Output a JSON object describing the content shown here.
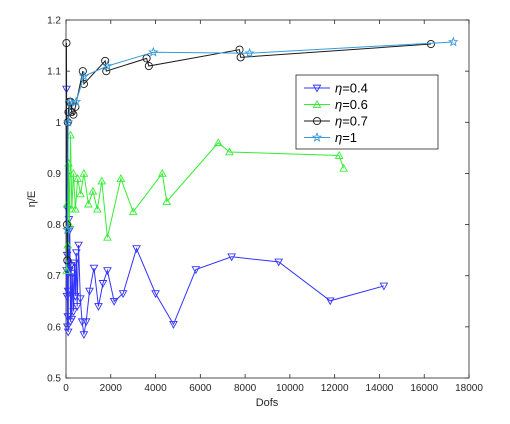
{
  "chart_data": {
    "type": "line",
    "xlabel": "Dofs",
    "ylabel": "η/E",
    "xlim": [
      0,
      18000
    ],
    "ylim": [
      0.5,
      1.2
    ],
    "xticks": [
      0,
      2000,
      4000,
      6000,
      8000,
      10000,
      12000,
      14000,
      16000,
      18000
    ],
    "yticks": [
      0.5,
      0.6,
      0.7,
      0.8,
      0.9,
      1,
      1.1,
      1.2
    ],
    "grid": false,
    "legend_position": "top-right",
    "series": [
      {
        "name": "η=0.4",
        "legend_prefix": "η",
        "legend_value": "=0.4",
        "color": "#3333ff",
        "marker": "triangle-down",
        "points": [
          [
            20,
            1.065
          ],
          [
            30,
            0.71
          ],
          [
            40,
            0.66
          ],
          [
            50,
            0.74
          ],
          [
            60,
            0.6
          ],
          [
            70,
            0.83
          ],
          [
            80,
            0.62
          ],
          [
            90,
            0.67
          ],
          [
            100,
            0.59
          ],
          [
            110,
            0.72
          ],
          [
            130,
            0.81
          ],
          [
            150,
            0.71
          ],
          [
            170,
            0.79
          ],
          [
            200,
            0.61
          ],
          [
            230,
            0.72
          ],
          [
            260,
            0.615
          ],
          [
            300,
            0.705
          ],
          [
            340,
            0.63
          ],
          [
            380,
            0.725
          ],
          [
            420,
            0.66
          ],
          [
            460,
            0.745
          ],
          [
            500,
            0.64
          ],
          [
            560,
            0.76
          ],
          [
            640,
            0.655
          ],
          [
            720,
            0.61
          ],
          [
            800,
            0.585
          ],
          [
            900,
            0.61
          ],
          [
            1050,
            0.67
          ],
          [
            1250,
            0.715
          ],
          [
            1450,
            0.64
          ],
          [
            1650,
            0.685
          ],
          [
            1850,
            0.71
          ],
          [
            2150,
            0.65
          ],
          [
            2550,
            0.665
          ],
          [
            3150,
            0.753
          ],
          [
            4000,
            0.665
          ],
          [
            4800,
            0.605
          ],
          [
            5800,
            0.712
          ],
          [
            7400,
            0.737
          ],
          [
            9500,
            0.727
          ],
          [
            11800,
            0.651
          ],
          [
            14200,
            0.68
          ]
        ]
      },
      {
        "name": "η=0.6",
        "legend_prefix": "η",
        "legend_value": "=0.6",
        "color": "#33ee33",
        "marker": "triangle-up",
        "points": [
          [
            30,
            0.71
          ],
          [
            50,
            0.84
          ],
          [
            80,
            0.76
          ],
          [
            110,
            0.92
          ],
          [
            150,
            0.8
          ],
          [
            200,
            0.975
          ],
          [
            260,
            0.83
          ],
          [
            330,
            0.9
          ],
          [
            420,
            0.83
          ],
          [
            520,
            0.89
          ],
          [
            650,
            0.86
          ],
          [
            800,
            0.9
          ],
          [
            1000,
            0.84
          ],
          [
            1200,
            0.865
          ],
          [
            1400,
            0.83
          ],
          [
            1600,
            0.885
          ],
          [
            1850,
            0.775
          ],
          [
            2450,
            0.89
          ],
          [
            3000,
            0.825
          ],
          [
            4300,
            0.9
          ],
          [
            4500,
            0.845
          ],
          [
            6800,
            0.96
          ],
          [
            7300,
            0.942
          ],
          [
            12200,
            0.935
          ],
          [
            12400,
            0.91
          ]
        ]
      },
      {
        "name": "η=0.7",
        "legend_prefix": "η",
        "legend_value": "=0.7",
        "color": "#1a1a1a",
        "marker": "circle",
        "points": [
          [
            20,
            1.155
          ],
          [
            40,
            0.8
          ],
          [
            60,
            0.73
          ],
          [
            80,
            1.0
          ],
          [
            110,
            1.02
          ],
          [
            150,
            1.04
          ],
          [
            200,
            1.04
          ],
          [
            260,
            1.02
          ],
          [
            330,
            1.015
          ],
          [
            420,
            1.03
          ],
          [
            750,
            1.1
          ],
          [
            800,
            1.075
          ],
          [
            1750,
            1.12
          ],
          [
            1800,
            1.1
          ],
          [
            3600,
            1.125
          ],
          [
            3700,
            1.11
          ],
          [
            7750,
            1.142
          ],
          [
            7800,
            1.127
          ],
          [
            16300,
            1.153
          ]
        ]
      },
      {
        "name": "η=1",
        "legend_prefix": "η",
        "legend_value": "=1",
        "color": "#3a9ad9",
        "marker": "star",
        "points": [
          [
            60,
            0.79
          ],
          [
            100,
            1.0
          ],
          [
            200,
            1.04
          ],
          [
            450,
            1.04
          ],
          [
            800,
            1.09
          ],
          [
            1850,
            1.11
          ],
          [
            3900,
            1.137
          ],
          [
            8200,
            1.135
          ],
          [
            17300,
            1.157
          ]
        ]
      }
    ]
  }
}
